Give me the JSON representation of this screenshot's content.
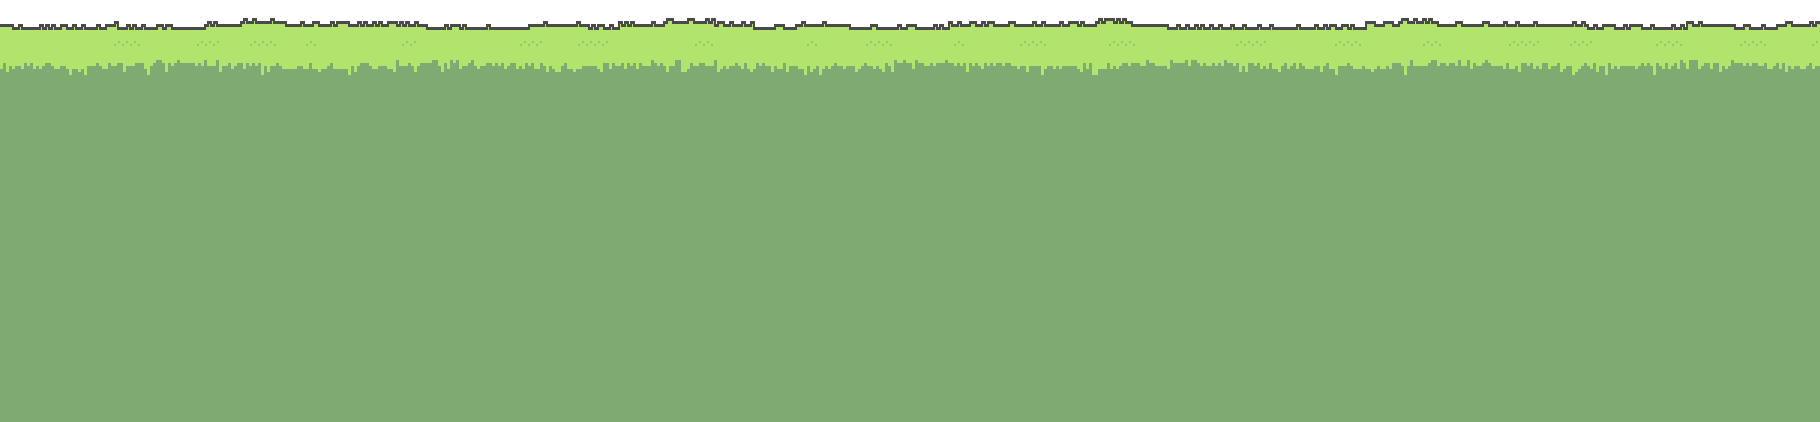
{
  "scene": {
    "type": "platformer-ground-tile",
    "description_visible_text": ""
  },
  "colors": {
    "sky": "#ffffff",
    "outline": "#4a4a4a",
    "grass_top": "#b2e36c",
    "grass_speckle": "#8fcc63",
    "soil": "#7fab72"
  },
  "terrain": {
    "tile_style": "pixel-art",
    "grass_tufts_pattern": "repeating"
  }
}
